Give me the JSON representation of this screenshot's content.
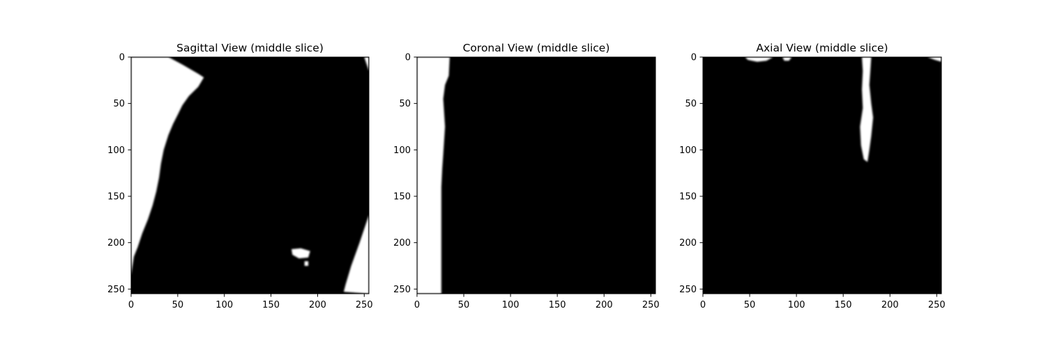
{
  "chart_data": [
    {
      "type": "heatmap",
      "title": "Sagittal View (middle slice)",
      "colormap": "gray",
      "xlim": [
        0,
        255
      ],
      "ylim": [
        255,
        0
      ],
      "xticks": [
        0,
        50,
        100,
        150,
        200,
        250
      ],
      "yticks": [
        0,
        50,
        100,
        150,
        200,
        250
      ],
      "regions": [
        {
          "value": "white",
          "outline": [
            [
              0,
              0
            ],
            [
              40,
              0
            ],
            [
              55,
              8
            ],
            [
              72,
              18
            ],
            [
              78,
              22
            ],
            [
              72,
              32
            ],
            [
              62,
              42
            ],
            [
              55,
              52
            ],
            [
              50,
              62
            ],
            [
              45,
              72
            ],
            [
              40,
              84
            ],
            [
              35,
              100
            ],
            [
              32,
              115
            ],
            [
              30,
              130
            ],
            [
              27,
              145
            ],
            [
              23,
              160
            ],
            [
              18,
              175
            ],
            [
              12,
              190
            ],
            [
              7,
              205
            ],
            [
              3,
              215
            ],
            [
              0,
              235
            ]
          ]
        },
        {
          "value": "white",
          "outline": [
            [
              250,
              0
            ],
            [
              255,
              0
            ],
            [
              255,
              15
            ]
          ]
        },
        {
          "value": "white",
          "outline": [
            [
              255,
              170
            ],
            [
              245,
              200
            ],
            [
              236,
              225
            ],
            [
              230,
              245
            ],
            [
              228,
              253
            ],
            [
              255,
              255
            ]
          ]
        },
        {
          "value": "white",
          "outline": [
            [
              172,
              207
            ],
            [
              182,
              206
            ],
            [
              192,
              209
            ],
            [
              190,
              216
            ],
            [
              180,
              217
            ],
            [
              173,
              213
            ]
          ]
        },
        {
          "value": "white",
          "outline": [
            [
              186,
              220
            ],
            [
              190,
              220
            ],
            [
              190,
              225
            ],
            [
              186,
              225
            ]
          ]
        }
      ]
    },
    {
      "type": "heatmap",
      "title": "Coronal View (middle slice)",
      "colormap": "gray",
      "xlim": [
        0,
        255
      ],
      "ylim": [
        255,
        0
      ],
      "xticks": [
        0,
        50,
        100,
        150,
        200,
        250
      ],
      "yticks": [
        0,
        50,
        100,
        150,
        200,
        250
      ],
      "regions": [
        {
          "value": "white",
          "outline": [
            [
              0,
              0
            ],
            [
              35,
              0
            ],
            [
              34,
              20
            ],
            [
              30,
              30
            ],
            [
              28,
              45
            ],
            [
              29,
              60
            ],
            [
              30,
              75
            ],
            [
              29,
              90
            ],
            [
              28,
              105
            ],
            [
              27,
              120
            ],
            [
              26,
              140
            ],
            [
              26,
              160
            ],
            [
              26,
              200
            ],
            [
              26,
              255
            ],
            [
              0,
              255
            ]
          ]
        }
      ]
    },
    {
      "type": "heatmap",
      "title": "Axial View (middle slice)",
      "colormap": "gray",
      "xlim": [
        0,
        255
      ],
      "ylim": [
        255,
        0
      ],
      "xticks": [
        0,
        50,
        100,
        150,
        200,
        250
      ],
      "yticks": [
        0,
        50,
        100,
        150,
        200,
        250
      ],
      "regions": [
        {
          "value": "white",
          "outline": [
            [
              170,
              0
            ],
            [
              180,
              0
            ],
            [
              179,
              15
            ],
            [
              178,
              30
            ],
            [
              180,
              50
            ],
            [
              182,
              65
            ],
            [
              180,
              85
            ],
            [
              178,
              100
            ],
            [
              176,
              113
            ],
            [
              172,
              110
            ],
            [
              169,
              95
            ],
            [
              168,
              75
            ],
            [
              171,
              55
            ],
            [
              170,
              35
            ],
            [
              171,
              15
            ]
          ]
        },
        {
          "value": "white",
          "outline": [
            [
              45,
              0
            ],
            [
              75,
              0
            ],
            [
              68,
              4
            ],
            [
              58,
              5
            ],
            [
              48,
              3
            ]
          ]
        },
        {
          "value": "white",
          "outline": [
            [
              85,
              0
            ],
            [
              95,
              0
            ],
            [
              92,
              4
            ],
            [
              87,
              4
            ]
          ]
        },
        {
          "value": "white",
          "outline": [
            [
              240,
              0
            ],
            [
              255,
              0
            ],
            [
              255,
              5
            ],
            [
              248,
              3
            ]
          ]
        }
      ]
    }
  ]
}
